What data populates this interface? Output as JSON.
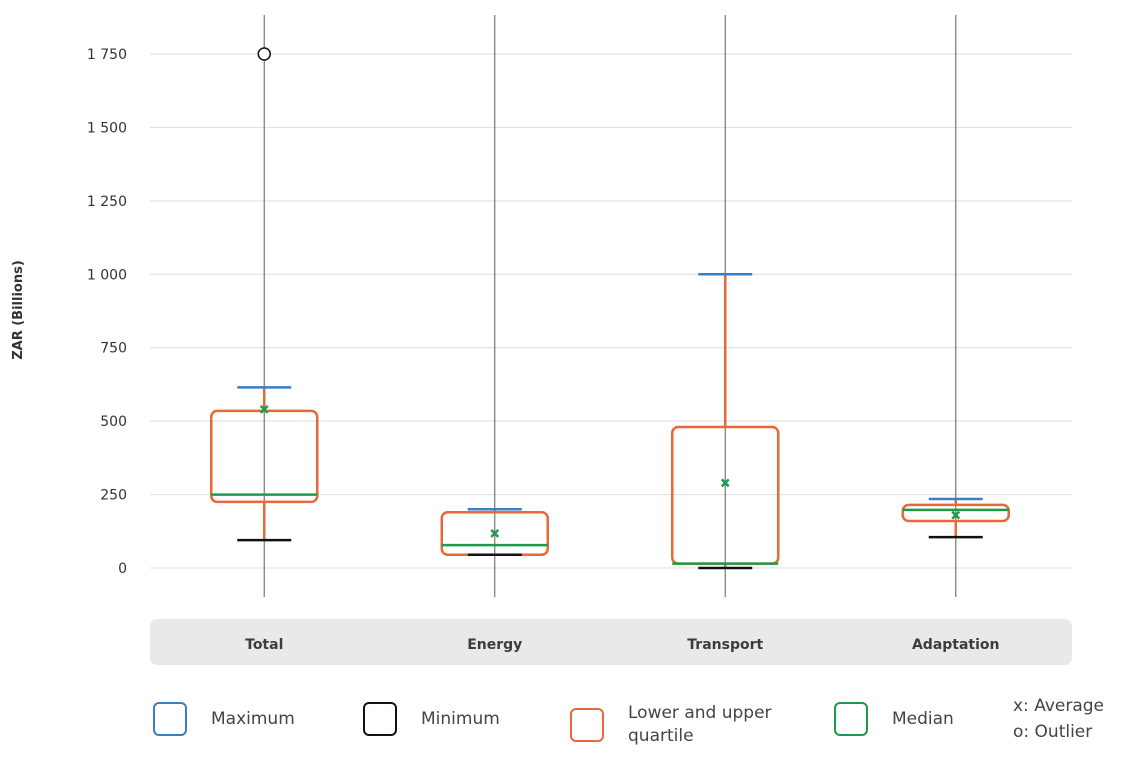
{
  "chart_data": {
    "type": "box",
    "ylabel": "ZAR (Billions)",
    "ylim": [
      -100,
      1880
    ],
    "yticks": [
      0,
      250,
      500,
      750,
      1000,
      1250,
      1500,
      1750
    ],
    "ytick_labels": [
      "0",
      "250",
      "500",
      "750",
      "1 000",
      "1 250",
      "1 500",
      "1 750"
    ],
    "grid": true,
    "categories": [
      "Total",
      "Energy",
      "Transport",
      "Adaptation"
    ],
    "boxes": [
      {
        "category": "Total",
        "min": 95,
        "q1": 225,
        "median": 250,
        "q3": 535,
        "max": 615,
        "mean": 540,
        "outliers": [
          1750
        ]
      },
      {
        "category": "Energy",
        "min": 45,
        "q1": 45,
        "median": 78,
        "q3": 190,
        "max": 200,
        "mean": 118,
        "outliers": []
      },
      {
        "category": "Transport",
        "min": 0,
        "q1": 15,
        "median": 15,
        "q3": 480,
        "max": 1000,
        "mean": 290,
        "outliers": []
      },
      {
        "category": "Adaptation",
        "min": 105,
        "q1": 160,
        "median": 198,
        "q3": 215,
        "max": 235,
        "mean": 180,
        "outliers": []
      }
    ],
    "colors": {
      "maximum": "#3a7dc0",
      "minimum": "#111111",
      "quartile": "#e8683a",
      "median": "#1e9a4c",
      "mean": "#1e9a4c",
      "whisker_line": "#777777",
      "grid": "#dddddd",
      "category_band": "#e9e9e9"
    }
  },
  "legend": {
    "items": [
      {
        "key": "maximum",
        "label": "Maximum",
        "color": "#3a7dc0"
      },
      {
        "key": "minimum",
        "label": "Minimum",
        "color": "#111111"
      },
      {
        "key": "quartile",
        "label": "Lower and upper quartile",
        "color": "#e8683a"
      },
      {
        "key": "median",
        "label": "Median",
        "color": "#1e9a4c"
      }
    ],
    "note_average": "x: Average",
    "note_outlier": "o: Outlier"
  }
}
